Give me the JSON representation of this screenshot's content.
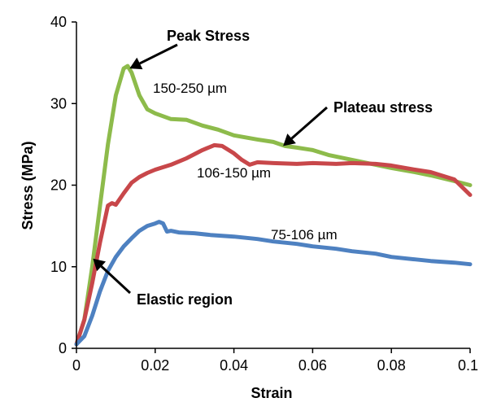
{
  "chart_data": {
    "type": "line",
    "title": "",
    "xlabel": "Strain",
    "ylabel": "Stress (MPa)",
    "xlim": [
      0,
      0.1
    ],
    "ylim": [
      0,
      40
    ],
    "x_ticks": [
      0,
      0.02,
      0.04,
      0.06,
      0.08,
      0.1
    ],
    "x_tick_labels": [
      "0",
      "0.02",
      "0.04",
      "0.06",
      "0.08",
      "0.1"
    ],
    "y_ticks": [
      0,
      10,
      20,
      30,
      40
    ],
    "y_tick_labels": [
      "0",
      "10",
      "20",
      "30",
      "40"
    ],
    "grid": false,
    "legend": "none",
    "series": [
      {
        "name": "150-250 µm",
        "color": "#8dbb4b",
        "x": [
          0,
          0.002,
          0.004,
          0.006,
          0.008,
          0.01,
          0.012,
          0.013,
          0.014,
          0.016,
          0.018,
          0.02,
          0.024,
          0.028,
          0.032,
          0.036,
          0.04,
          0.046,
          0.05,
          0.053,
          0.056,
          0.06,
          0.064,
          0.07,
          0.076,
          0.08,
          0.086,
          0.09,
          0.096,
          0.1
        ],
        "y": [
          0.5,
          3.5,
          10,
          17.5,
          25,
          31,
          34.3,
          34.6,
          33.8,
          31,
          29.3,
          28.8,
          28.1,
          28,
          27.3,
          26.8,
          26.1,
          25.6,
          25.3,
          24.8,
          24.6,
          24.3,
          23.7,
          23.1,
          22.5,
          22.1,
          21.6,
          21.2,
          20.5,
          20
        ]
      },
      {
        "name": "106-150 µm",
        "color": "#c8474a",
        "x": [
          0,
          0.002,
          0.004,
          0.006,
          0.008,
          0.009,
          0.01,
          0.012,
          0.014,
          0.016,
          0.018,
          0.02,
          0.024,
          0.028,
          0.032,
          0.035,
          0.037,
          0.04,
          0.042,
          0.044,
          0.046,
          0.05,
          0.056,
          0.06,
          0.066,
          0.07,
          0.076,
          0.08,
          0.086,
          0.09,
          0.096,
          0.1
        ],
        "y": [
          0.5,
          3.5,
          8,
          13,
          17.5,
          17.8,
          17.6,
          19,
          20.3,
          21,
          21.5,
          21.9,
          22.5,
          23.3,
          24.3,
          24.9,
          24.8,
          23.9,
          23.1,
          22.5,
          22.8,
          22.7,
          22.6,
          22.7,
          22.6,
          22.7,
          22.6,
          22.4,
          21.9,
          21.6,
          20.7,
          18.8
        ]
      },
      {
        "name": "75-106 µm",
        "color": "#4e81c1",
        "x": [
          0,
          0.002,
          0.004,
          0.006,
          0.008,
          0.01,
          0.012,
          0.014,
          0.016,
          0.018,
          0.02,
          0.021,
          0.022,
          0.023,
          0.024,
          0.026,
          0.03,
          0.034,
          0.04,
          0.046,
          0.05,
          0.056,
          0.06,
          0.066,
          0.07,
          0.076,
          0.08,
          0.086,
          0.09,
          0.096,
          0.1
        ],
        "y": [
          0.5,
          1.5,
          4,
          7,
          9.5,
          11.2,
          12.5,
          13.5,
          14.4,
          15,
          15.3,
          15.5,
          15.3,
          14.3,
          14.4,
          14.2,
          14.1,
          13.9,
          13.7,
          13.4,
          13.1,
          12.8,
          12.5,
          12.2,
          11.9,
          11.6,
          11.2,
          10.9,
          10.7,
          10.5,
          10.3
        ]
      }
    ],
    "annotations": [
      {
        "text": "Peak Stress",
        "x": 0.0135,
        "y": 34.3
      },
      {
        "text": "Plateau stress",
        "x": 0.0525,
        "y": 24.8
      },
      {
        "text": "Elastic region",
        "x": 0.0042,
        "y": 11
      }
    ]
  }
}
